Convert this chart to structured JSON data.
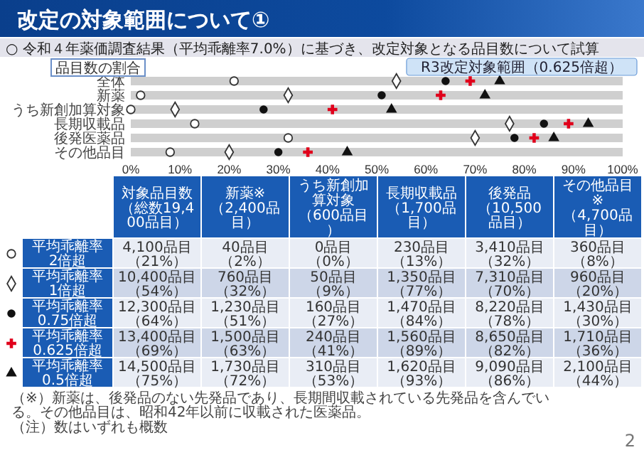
{
  "chart_data": {
    "type": "scatter",
    "orientation": "horizontal",
    "title": "改定の対象範囲について①",
    "subtitle": "○ 令和４年薬価調査結果（平均乖離率7.0%）に基づき、改定対象となる品目数について試算",
    "categories": [
      "全体",
      "新薬",
      "うち新創加算対象",
      "長期収載品",
      "後発医薬品",
      "その他品目"
    ],
    "xlim": [
      0,
      100
    ],
    "xticks": [
      {
        "value": 0,
        "label": "0%"
      },
      {
        "value": 10,
        "label": "10%"
      },
      {
        "value": 20,
        "label": "20%"
      },
      {
        "value": 30,
        "label": "30%"
      },
      {
        "value": 40,
        "label": "40%"
      },
      {
        "value": 50,
        "label": "50%"
      },
      {
        "value": 60,
        "label": "60%"
      },
      {
        "value": 70,
        "label": "70%"
      },
      {
        "value": 80,
        "label": "80%"
      },
      {
        "value": 90,
        "label": "90%"
      },
      {
        "value": 100,
        "label": "100%"
      }
    ],
    "grid": "y",
    "legend": "bottom",
    "series": [
      {
        "name": "平均乖離率2倍超",
        "color": "#ffffff",
        "marker": "circle",
        "values": [
          21,
          2,
          0,
          13,
          32,
          8
        ]
      },
      {
        "name": "平均乖離率1倍超",
        "color": "#ffffff",
        "marker": "diamond",
        "values": [
          54,
          32,
          9,
          77,
          70,
          20
        ]
      },
      {
        "name": "平均乖離率0.75倍超",
        "color": "#111111",
        "marker": "circle",
        "values": [
          64,
          51,
          27,
          84,
          78,
          30
        ]
      },
      {
        "name": "平均乖離率0.625倍超",
        "color": "#e0001b",
        "marker": "cross",
        "values": [
          69,
          63,
          41,
          89,
          82,
          36
        ]
      },
      {
        "name": "平均乖離率0.5倍超",
        "color": "#111111",
        "marker": "triangle",
        "values": [
          75,
          72,
          53,
          93,
          86,
          44
        ]
      }
    ],
    "annotations": [
      "品目数の割合",
      {
        "text": "R3改定対象範囲（0.625倍超）",
        "x": 69,
        "y": "全体"
      },
      "対象品目数（総数19,400品目）",
      "新薬※（2,400品目）",
      "うち新創加算対象（600品目）",
      "長期収載品（1,700品目）",
      "後発品（10,500品目）",
      "その他品目※（4,700品目）",
      "4,100品目（21%）",
      "40品目（2%）",
      "0品目（0%）",
      "230品目（13%）",
      "3,410品目（32%）",
      "360品目（8%）",
      "10,400品目（54%）",
      "760品目（32%）",
      "50品目（9%）",
      "1,350品目（77%）",
      "7,310品目（70%）",
      "960品目（20%）",
      "12,300品目（64%）",
      "1,230品目（51%）",
      "160品目（27%）",
      "1,470品目（84%）",
      "8,220品目（78%）",
      "1,430品目（30%）",
      "13,400品目（69%）",
      "1,500品目（63%）",
      "240品目（41%）",
      "1,560品目（89%）",
      "8,650品目（82%）",
      "1,710品目（36%）",
      "14,500品目（75%）",
      "1,730品目（72%）",
      "310品目（53%）",
      "1,620品目（93%）",
      "9,090品目（86%）",
      "2,100品目（44%）",
      "（※）新薬は、後発品のない先発品であり、長期間収載されている先発品を含んでいる。その他品目は、昭和42年以前に収載された医薬品。",
      "（注）数はいずれも概数",
      "2"
    ]
  }
}
